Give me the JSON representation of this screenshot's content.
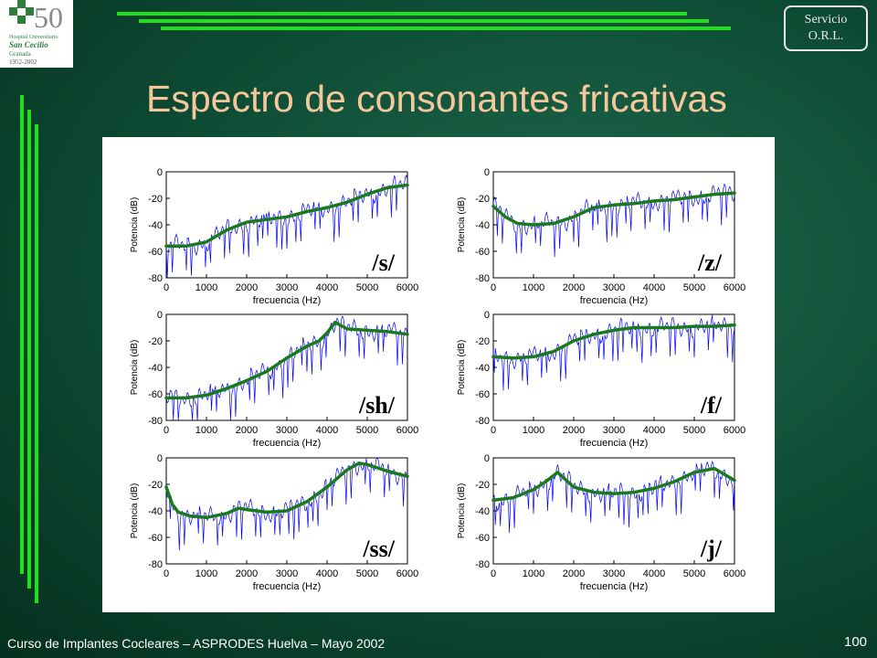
{
  "header": {
    "logo": {
      "number": "50",
      "line1": "Hospital Universitario",
      "line2": "San Cecilio",
      "line3": "Granada",
      "line4": "1952-2002"
    },
    "badge": {
      "line1": "Servicio",
      "line2": "O.R.L."
    },
    "title": "Espectro de consonantes fricativas"
  },
  "footer": {
    "text": "Curso de Implantes Cocleares – ASPRODES Huelva – Mayo 2002",
    "page": "100"
  },
  "colors": {
    "background": "#0d4a33",
    "title": "#f4c89a",
    "accent_bars": "#1ee01e",
    "spectrum": "#0000ff",
    "envelope": "#1a7a1a"
  },
  "chart_data": [
    {
      "type": "line",
      "label": "/s/",
      "xlabel": "frecuencia (Hz)",
      "ylabel": "Potencia (dB)",
      "xlim": [
        0,
        6000
      ],
      "ylim": [
        -80,
        0
      ],
      "xticks": [
        "0",
        "1000",
        "2000",
        "3000",
        "4000",
        "5000",
        "6000"
      ],
      "yticks": [
        "0",
        "-20",
        "-40",
        "-60",
        "-80"
      ],
      "envelope": {
        "x": [
          0,
          500,
          1000,
          1500,
          2000,
          2500,
          3000,
          3500,
          4000,
          4500,
          5000,
          5500,
          6000
        ],
        "y": [
          -56,
          -56,
          -53,
          -44,
          -38,
          -36,
          -34,
          -30,
          -27,
          -23,
          -17,
          -12,
          -10
        ]
      }
    },
    {
      "type": "line",
      "label": "/z/",
      "xlabel": "frecuencia (Hz)",
      "ylabel": "Potencia (dB)",
      "xlim": [
        0,
        6000
      ],
      "ylim": [
        -80,
        0
      ],
      "xticks": [
        "0",
        "1000",
        "2000",
        "3000",
        "4000",
        "5000",
        "6000"
      ],
      "yticks": [
        "0",
        "-20",
        "-40",
        "-60",
        "-80"
      ],
      "envelope": {
        "x": [
          0,
          300,
          600,
          1000,
          1500,
          2000,
          2500,
          3000,
          3500,
          4000,
          4500,
          5000,
          5500,
          6000
        ],
        "y": [
          -26,
          -34,
          -39,
          -40,
          -39,
          -34,
          -27,
          -25,
          -24,
          -22,
          -21,
          -19,
          -17,
          -16
        ]
      }
    },
    {
      "type": "line",
      "label": "/sh/",
      "xlabel": "frecuencia (Hz)",
      "ylabel": "Potencia (dB)",
      "xlim": [
        0,
        6000
      ],
      "ylim": [
        -80,
        0
      ],
      "xticks": [
        "0",
        "1000",
        "2000",
        "3000",
        "4000",
        "5000",
        "6000"
      ],
      "yticks": [
        "0",
        "-20",
        "-40",
        "-60",
        "-80"
      ],
      "envelope": {
        "x": [
          0,
          500,
          1000,
          1500,
          2000,
          2500,
          3000,
          3500,
          3800,
          4000,
          4200,
          4500,
          5000,
          5500,
          6000
        ],
        "y": [
          -63,
          -63,
          -61,
          -56,
          -50,
          -43,
          -33,
          -24,
          -20,
          -14,
          -6,
          -11,
          -12,
          -13,
          -15
        ]
      }
    },
    {
      "type": "line",
      "label": "/f/",
      "xlabel": "frecuencia (Hz)",
      "ylabel": "Potencia (dB)",
      "xlim": [
        0,
        6000
      ],
      "ylim": [
        -80,
        0
      ],
      "xticks": [
        "0",
        "1000",
        "2000",
        "3000",
        "4000",
        "5000",
        "6000"
      ],
      "yticks": [
        "0",
        "-20",
        "-40",
        "-60",
        "-80"
      ],
      "envelope": {
        "x": [
          0,
          500,
          1000,
          1500,
          2000,
          2500,
          3000,
          3500,
          4000,
          4500,
          5000,
          5500,
          6000
        ],
        "y": [
          -32,
          -33,
          -32,
          -28,
          -20,
          -15,
          -12,
          -10,
          -10,
          -10,
          -9,
          -9,
          -8
        ]
      }
    },
    {
      "type": "line",
      "label": "/ss/",
      "xlabel": "frecuencia (Hz)",
      "ylabel": "Potencia (dB)",
      "xlim": [
        0,
        6000
      ],
      "ylim": [
        -80,
        0
      ],
      "xticks": [
        "0",
        "1000",
        "2000",
        "3000",
        "4000",
        "5000",
        "6000"
      ],
      "yticks": [
        "0",
        "-20",
        "-40",
        "-60",
        "-80"
      ],
      "envelope": {
        "x": [
          0,
          150,
          300,
          600,
          1000,
          1500,
          1800,
          2000,
          2500,
          3000,
          3500,
          4000,
          4500,
          4800,
          5000,
          5500,
          6000
        ],
        "y": [
          -22,
          -35,
          -41,
          -44,
          -45,
          -42,
          -38,
          -39,
          -41,
          -40,
          -33,
          -22,
          -9,
          -4,
          -5,
          -10,
          -14
        ]
      }
    },
    {
      "type": "line",
      "label": "/j/",
      "xlabel": "frecuencia (Hz)",
      "ylabel": "Potencia (dB)",
      "xlim": [
        0,
        6000
      ],
      "ylim": [
        -80,
        0
      ],
      "xticks": [
        "0",
        "1000",
        "2000",
        "3000",
        "4000",
        "5000",
        "6000"
      ],
      "yticks": [
        "0",
        "-20",
        "-40",
        "-60",
        "-80"
      ],
      "envelope": {
        "x": [
          0,
          500,
          1000,
          1300,
          1600,
          2000,
          2500,
          3000,
          3500,
          4000,
          4500,
          5000,
          5500,
          6000
        ],
        "y": [
          -32,
          -30,
          -24,
          -18,
          -11,
          -22,
          -26,
          -27,
          -26,
          -23,
          -18,
          -11,
          -8,
          -17
        ]
      }
    }
  ]
}
